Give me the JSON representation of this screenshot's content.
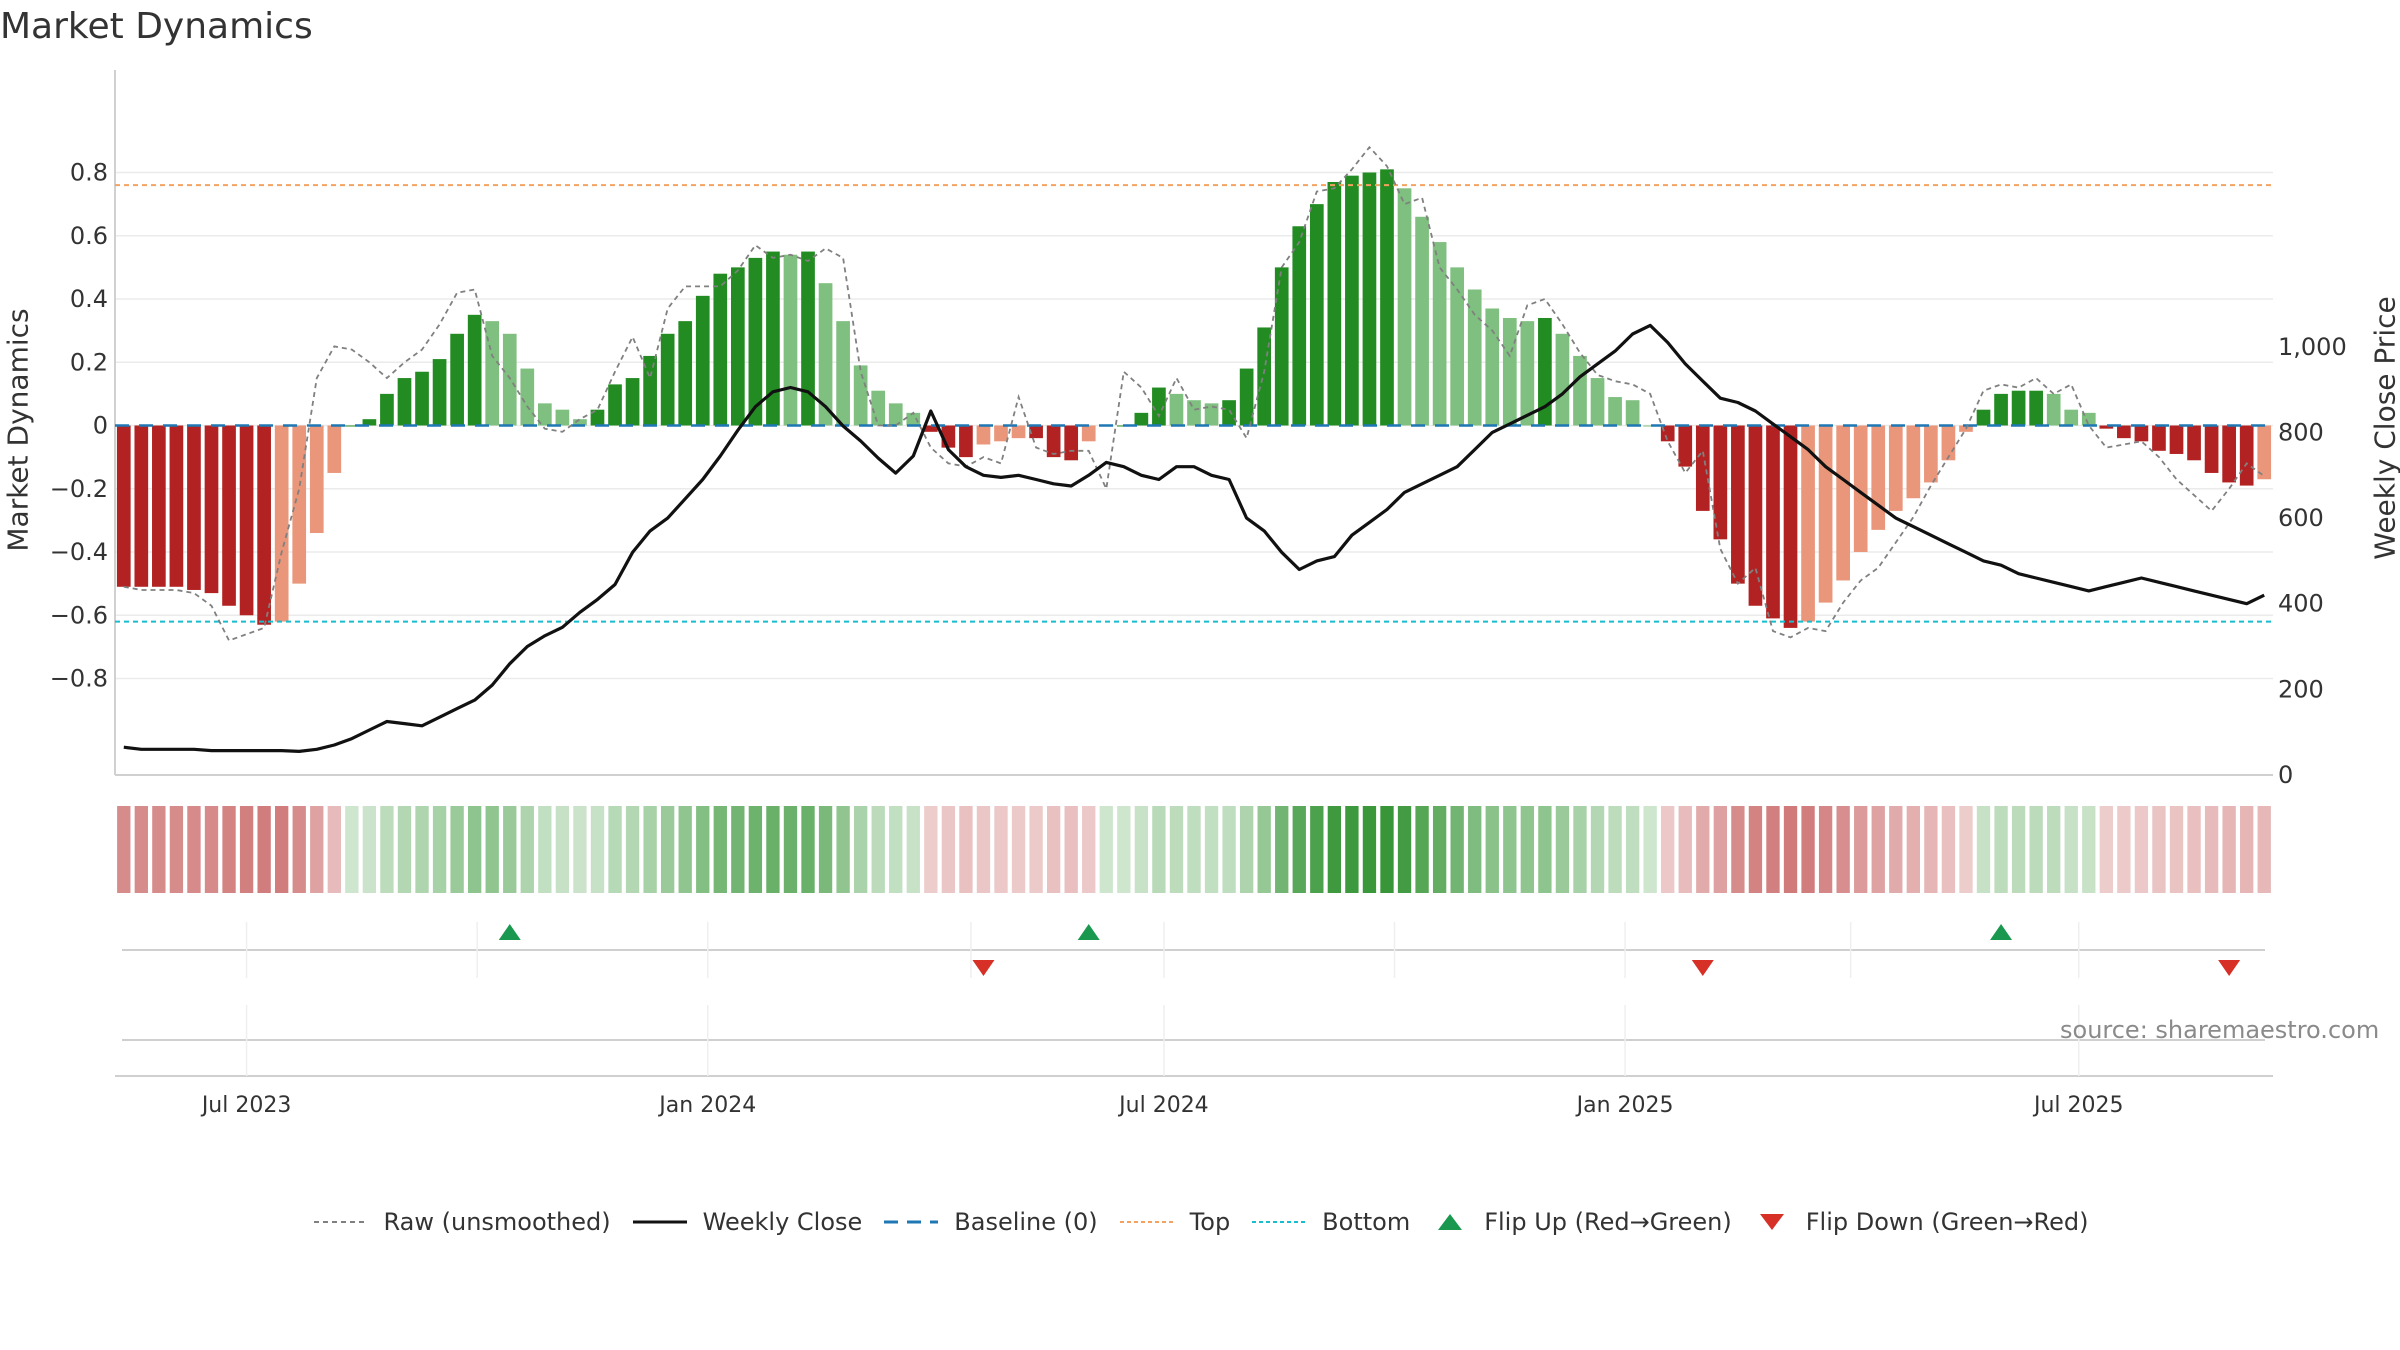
{
  "chart_title": "Market Dynamics",
  "chart_data": {
    "type": "bar",
    "title": "Market Dynamics",
    "ylabel": "Market Dynamics",
    "y2label": "Weekly Close Price",
    "ylim": [
      -0.88,
      0.9
    ],
    "y2lim": [
      0,
      1100
    ],
    "yticks": [
      "0.8",
      "0.6",
      "0.4",
      "0.2",
      "0",
      "−0.2",
      "−0.4",
      "−0.6",
      "−0.8"
    ],
    "y2ticks": [
      "0",
      "200",
      "400",
      "600",
      "800",
      "1,000"
    ],
    "xticks": [
      "Jul 2023",
      "Jan 2024",
      "Jul 2024",
      "Jan 2025",
      "Jul 2025"
    ],
    "grid": true,
    "top_line": 0.76,
    "bottom_line": -0.62,
    "baseline": 0,
    "market_dynamics_weekly": [
      -0.51,
      -0.51,
      -0.51,
      -0.51,
      -0.52,
      -0.53,
      -0.57,
      -0.6,
      -0.63,
      -0.62,
      -0.5,
      -0.34,
      -0.15,
      0.0,
      0.02,
      0.1,
      0.15,
      0.17,
      0.21,
      0.29,
      0.35,
      0.33,
      0.29,
      0.18,
      0.07,
      0.05,
      0.02,
      0.05,
      0.13,
      0.15,
      0.22,
      0.29,
      0.33,
      0.41,
      0.48,
      0.5,
      0.53,
      0.55,
      0.54,
      0.55,
      0.45,
      0.33,
      0.19,
      0.11,
      0.07,
      0.04,
      -0.02,
      -0.07,
      -0.1,
      -0.06,
      -0.05,
      -0.04,
      -0.04,
      -0.1,
      -0.11,
      -0.05,
      0.0,
      0.0,
      0.04,
      0.12,
      0.1,
      0.08,
      0.07,
      0.08,
      0.18,
      0.31,
      0.5,
      0.63,
      0.7,
      0.77,
      0.79,
      0.8,
      0.81,
      0.75,
      0.66,
      0.58,
      0.5,
      0.43,
      0.37,
      0.34,
      0.33,
      0.34,
      0.29,
      0.22,
      0.15,
      0.09,
      0.08,
      0.0,
      -0.05,
      -0.13,
      -0.27,
      -0.36,
      -0.5,
      -0.57,
      -0.61,
      -0.64,
      -0.62,
      -0.56,
      -0.49,
      -0.4,
      -0.33,
      -0.27,
      -0.23,
      -0.18,
      -0.11,
      -0.02,
      0.05,
      0.1,
      0.11,
      0.11,
      0.1,
      0.05,
      0.04,
      -0.01,
      -0.04,
      -0.05,
      -0.08,
      -0.09,
      -0.11,
      -0.15,
      -0.18,
      -0.19,
      -0.17
    ],
    "raw_unsmoothed": [
      -0.51,
      -0.52,
      -0.52,
      -0.52,
      -0.53,
      -0.57,
      -0.68,
      -0.66,
      -0.64,
      -0.4,
      -0.2,
      0.15,
      0.25,
      0.24,
      0.2,
      0.15,
      0.2,
      0.24,
      0.32,
      0.42,
      0.43,
      0.22,
      0.15,
      0.06,
      -0.01,
      -0.02,
      0.02,
      0.05,
      0.17,
      0.28,
      0.15,
      0.37,
      0.44,
      0.44,
      0.44,
      0.49,
      0.57,
      0.53,
      0.54,
      0.52,
      0.56,
      0.53,
      0.17,
      0.0,
      0.0,
      0.04,
      -0.07,
      -0.12,
      -0.13,
      -0.1,
      -0.12,
      0.09,
      -0.07,
      -0.09,
      -0.08,
      -0.08,
      -0.2,
      0.17,
      0.12,
      0.03,
      0.15,
      0.05,
      0.06,
      0.05,
      -0.04,
      0.17,
      0.5,
      0.58,
      0.74,
      0.75,
      0.81,
      0.88,
      0.82,
      0.7,
      0.72,
      0.5,
      0.43,
      0.35,
      0.3,
      0.22,
      0.38,
      0.4,
      0.32,
      0.23,
      0.16,
      0.14,
      0.13,
      0.1,
      -0.05,
      -0.15,
      -0.08,
      -0.39,
      -0.5,
      -0.45,
      -0.65,
      -0.67,
      -0.64,
      -0.65,
      -0.56,
      -0.49,
      -0.45,
      -0.37,
      -0.29,
      -0.19,
      -0.1,
      -0.01,
      0.11,
      0.13,
      0.12,
      0.15,
      0.1,
      0.13,
      0.0,
      -0.07,
      -0.06,
      -0.05,
      -0.1,
      -0.17,
      -0.22,
      -0.27,
      -0.2,
      -0.12,
      -0.16
    ],
    "weekly_close": [
      65,
      60,
      60,
      60,
      60,
      57,
      57,
      57,
      57,
      57,
      55,
      60,
      70,
      85,
      105,
      125,
      120,
      115,
      135,
      155,
      175,
      210,
      260,
      300,
      325,
      345,
      380,
      410,
      445,
      520,
      570,
      600,
      645,
      690,
      745,
      805,
      860,
      895,
      905,
      895,
      860,
      815,
      780,
      740,
      705,
      745,
      850,
      760,
      720,
      700,
      695,
      700,
      690,
      680,
      675,
      700,
      730,
      720,
      700,
      690,
      720,
      720,
      700,
      690,
      600,
      570,
      520,
      480,
      500,
      510,
      560,
      590,
      620,
      660,
      680,
      700,
      720,
      760,
      800,
      820,
      840,
      860,
      890,
      930,
      960,
      990,
      1030,
      1050,
      1010,
      960,
      920,
      880,
      870,
      850,
      820,
      790,
      760,
      720,
      690,
      660,
      630,
      600,
      580,
      560,
      540,
      520,
      500,
      490,
      470,
      460,
      450,
      440,
      430,
      440,
      450,
      460,
      450,
      440,
      430,
      420,
      410,
      400,
      420
    ],
    "flip_up_dates": [
      "2023-10-14",
      "2024-06-01",
      "2025-05-31"
    ],
    "flip_down_dates": [
      "2024-04-20",
      "2025-02-01",
      "2025-08-30"
    ],
    "start_week": "2023-05-13",
    "weeks": 123
  },
  "legend": {
    "raw": "Raw (unsmoothed)",
    "close": "Weekly Close",
    "baseline": "Baseline (0)",
    "top": "Top",
    "bottom": "Bottom",
    "flip_up": "Flip Up (Red→Green)",
    "flip_down": "Flip Down (Green→Red)"
  },
  "source_text": "source: sharemaestro.com",
  "colors": {
    "strong_green": "#228b22",
    "light_green": "#7fbf7f",
    "strong_red": "#b22222",
    "light_red": "#e9967a",
    "close_line": "#111111",
    "raw_line": "#808080",
    "baseline": "#1f77b4",
    "top": "#f4a261",
    "bottom": "#17becf",
    "flip_up": "#1a9850",
    "flip_down": "#d73027"
  }
}
